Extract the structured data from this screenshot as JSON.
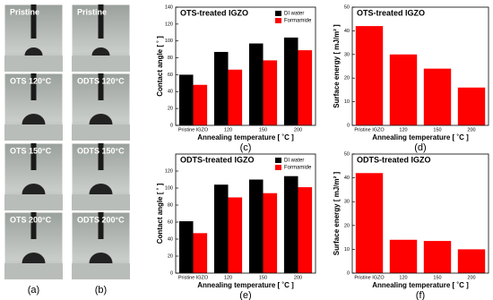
{
  "photos": {
    "columns": [
      {
        "panel": "(a)",
        "labels": [
          "Pristine",
          "OTS 120°C",
          "OTS 150°C",
          "OTS 200°C"
        ]
      },
      {
        "panel": "(b)",
        "labels": [
          "Pristine",
          "ODTS 120°C",
          "ODTS 150°C",
          "ODTS 200°C"
        ]
      }
    ]
  },
  "chart_data": [
    {
      "type": "bar",
      "title": "OTS-treated IGZO",
      "panel": "(c)",
      "xlabel": "Annealing temperature [ ˚C ]",
      "ylabel": "Contact angle [ ˚ ]",
      "categories": [
        "Pristine IGZO",
        "120",
        "150",
        "200"
      ],
      "series": [
        {
          "name": "DI water",
          "color": "#000000",
          "values": [
            60,
            87,
            97,
            104
          ]
        },
        {
          "name": "Formamide",
          "color": "#ff0000",
          "values": [
            48,
            66,
            77,
            89
          ]
        }
      ],
      "ylim": [
        0,
        140
      ],
      "yticks": [
        0,
        20,
        40,
        60,
        80,
        100,
        120,
        140
      ],
      "legend": "upper right"
    },
    {
      "type": "bar",
      "title": "OTS-treated IGZO",
      "panel": "(d)",
      "xlabel": "Annealing temperature [ ˚C ]",
      "ylabel": "Surface energy [ mJ/m² ]",
      "categories": [
        "Pristine IGZO",
        "120",
        "150",
        "200"
      ],
      "values": [
        42,
        30,
        24,
        16
      ],
      "color": "#ff0000",
      "ylim": [
        0,
        50
      ],
      "yticks": [
        0,
        10,
        20,
        30,
        40,
        50
      ]
    },
    {
      "type": "bar",
      "title": "ODTS-treated IGZO",
      "panel": "(e)",
      "xlabel": "Annealing temperature [ ˚C ]",
      "ylabel": "Contact angle [ ˚ ]",
      "categories": [
        "Pristine IGZO",
        "120",
        "150",
        "200"
      ],
      "series": [
        {
          "name": "DI water",
          "color": "#000000",
          "values": [
            61,
            104,
            110,
            114
          ]
        },
        {
          "name": "Formamide",
          "color": "#ff0000",
          "values": [
            47,
            89,
            94,
            101
          ]
        }
      ],
      "ylim": [
        0,
        140
      ],
      "yticks": [
        0,
        20,
        40,
        60,
        80,
        100,
        120
      ],
      "legend": "upper right"
    },
    {
      "type": "bar",
      "title": "ODTS-treated IGZO",
      "panel": "(f)",
      "xlabel": "Annealing temperature [ ˚C ]",
      "ylabel": "Surface energy [ mJ/m² ]",
      "categories": [
        "Pristine IGZO",
        "120",
        "150",
        "200"
      ],
      "values": [
        42,
        14,
        13.5,
        10
      ],
      "color": "#ff0000",
      "ylim": [
        0,
        50
      ],
      "yticks": [
        0,
        10,
        20,
        30,
        40,
        50
      ]
    }
  ]
}
